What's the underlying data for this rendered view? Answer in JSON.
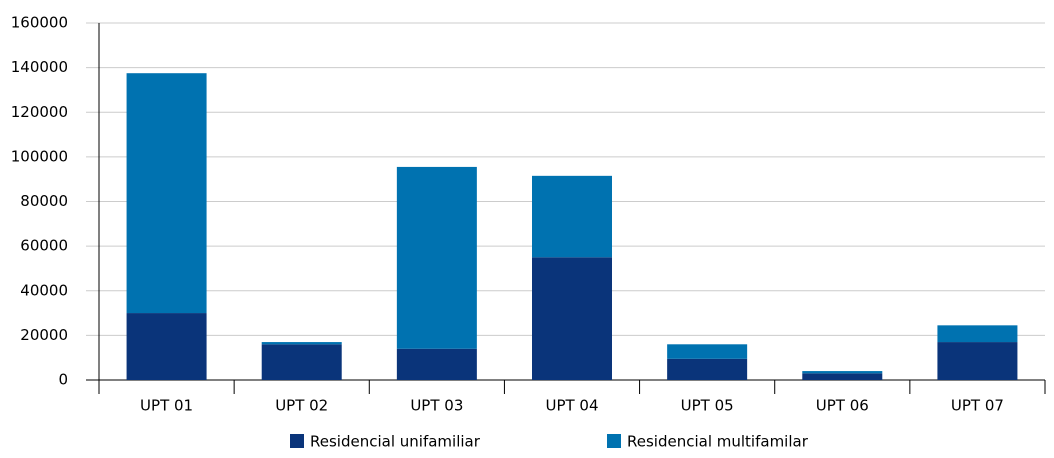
{
  "chart_data": {
    "type": "stacked_bar",
    "categories": [
      "UPT 01",
      "UPT 02",
      "UPT 03",
      "UPT 04",
      "UPT 05",
      "UPT 06",
      "UPT 07"
    ],
    "series": [
      {
        "name": "Residencial unifamiliar",
        "color": "#0a347a",
        "values": [
          30000,
          16000,
          14000,
          55000,
          9500,
          3000,
          17000
        ]
      },
      {
        "name": "Residencial multifamilar",
        "color": "#0072b0",
        "values": [
          107500,
          1000,
          81500,
          36500,
          6500,
          1000,
          7500
        ]
      }
    ],
    "ylim": [
      0,
      160000
    ],
    "yticks": [
      0,
      20000,
      40000,
      60000,
      80000,
      100000,
      120000,
      140000,
      160000
    ],
    "grid": true,
    "legend": "bottom"
  }
}
